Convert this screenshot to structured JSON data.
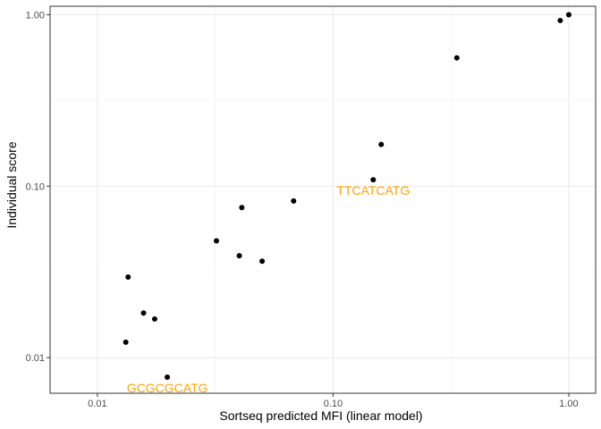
{
  "chart_data": {
    "type": "scatter",
    "title": "",
    "xlabel": "Sortseq predicted MFI (linear model)",
    "ylabel": "Individual score",
    "x_scale": "log10",
    "y_scale": "log10",
    "xlim": [
      0.0063,
      1.3
    ],
    "ylim": [
      0.0062,
      1.12
    ],
    "x_ticks": [
      {
        "value": 0.01,
        "label": "0.01"
      },
      {
        "value": 0.1,
        "label": "0.10"
      },
      {
        "value": 1,
        "label": "1.00"
      }
    ],
    "y_ticks": [
      {
        "value": 0.01,
        "label": "0.01"
      },
      {
        "value": 0.1,
        "label": "0.10"
      },
      {
        "value": 1,
        "label": "1.00"
      }
    ],
    "grid": true,
    "legend": "none",
    "point_color": "#000000",
    "annotation_color": "#FFA500",
    "points": [
      {
        "x": 1.0,
        "y": 1.0
      },
      {
        "x": 0.92,
        "y": 0.925
      },
      {
        "x": 0.335,
        "y": 0.56
      },
      {
        "x": 0.16,
        "y": 0.175
      },
      {
        "x": 0.148,
        "y": 0.109
      },
      {
        "x": 0.068,
        "y": 0.082
      },
      {
        "x": 0.041,
        "y": 0.075
      },
      {
        "x": 0.05,
        "y": 0.0365
      },
      {
        "x": 0.04,
        "y": 0.0393
      },
      {
        "x": 0.032,
        "y": 0.048
      },
      {
        "x": 0.0135,
        "y": 0.0295
      },
      {
        "x": 0.0157,
        "y": 0.0182
      },
      {
        "x": 0.0175,
        "y": 0.0168
      },
      {
        "x": 0.0132,
        "y": 0.0123
      },
      {
        "x": 0.0198,
        "y": 0.0077
      }
    ],
    "annotations": [
      {
        "text": "TTCATCATG",
        "x": 0.148,
        "y": 0.109
      },
      {
        "text": "GCGCGCATG",
        "x": 0.0198,
        "y": 0.0077
      }
    ]
  }
}
